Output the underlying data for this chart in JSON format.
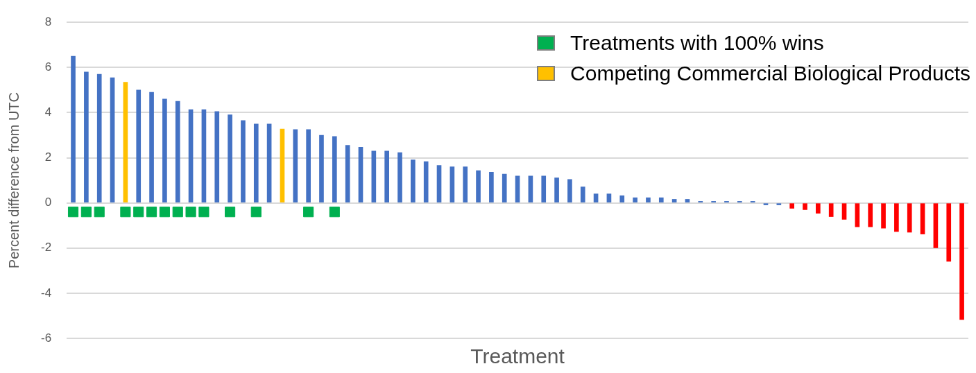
{
  "chart_data": {
    "type": "bar",
    "xlabel": "Treatment",
    "ylabel": "Percent difference from UTC",
    "categories": [
      null,
      null,
      null,
      null,
      null,
      null,
      null,
      null,
      null,
      null,
      null,
      null,
      null,
      null,
      null,
      null,
      null,
      null,
      null,
      null,
      null,
      null,
      null,
      null,
      null,
      null,
      null,
      null,
      null,
      null,
      null,
      null,
      null,
      null,
      null,
      null,
      null,
      null,
      null,
      null,
      null,
      null,
      null,
      null,
      null,
      null,
      null,
      null,
      null,
      null,
      null,
      null,
      null,
      null,
      null,
      null,
      null,
      null,
      null,
      null,
      null,
      null,
      null,
      null,
      null,
      null,
      null,
      null,
      null
    ],
    "series": [
      {
        "colors": [
          "#4472c4",
          "#4472c4",
          "#4472c4",
          "#4472c4",
          "#4472c4",
          "#4472c4",
          "#4472c4",
          "#4472c4",
          "#4472c4",
          "#4472c4",
          "#4472c4",
          "#4472c4",
          "#4472c4",
          "#4472c4",
          "#4472c4",
          "#4472c4",
          "#4472c4",
          "#4472c4",
          "#4472c4",
          "#4472c4",
          "#4472c4",
          "#4472c4",
          "#4472c4",
          "#4472c4",
          "#4472c4",
          "#4472c4",
          "#4472c4",
          "#4472c4",
          "#4472c4",
          "#4472c4",
          "#4472c4",
          "#4472c4",
          "#4472c4",
          "#4472c4",
          "#4472c4",
          "#4472c4",
          "#4472c4",
          "#4472c4",
          "#4472c4",
          "#4472c4",
          "#4472c4",
          "#4472c4",
          "#4472c4",
          "#4472c4",
          "#4472c4",
          "#4472c4",
          "#4472c4",
          "#4472c4",
          "#4472c4",
          "#4472c4",
          "#4472c4",
          "#4472c4",
          "#4472c4",
          "#4472c4",
          "#4472c4",
          "#ff0000",
          "#ff0000",
          "#ff0000",
          "#ff0000",
          "#ff0000",
          "#ff0000",
          "#ff0000",
          "#ff0000",
          "#ff0000",
          "#ff0000",
          "#ff0000",
          "#ff0000",
          "#ff0000",
          "#ff0000"
        ],
        "values": [
          6.5,
          5.8,
          5.7,
          5.55,
          null,
          5.0,
          4.9,
          4.6,
          4.5,
          4.13,
          4.13,
          4.05,
          3.9,
          3.65,
          3.5,
          3.5,
          null,
          3.25,
          3.25,
          3.0,
          2.94,
          2.55,
          2.47,
          2.3,
          2.3,
          2.23,
          1.91,
          1.83,
          1.66,
          1.6,
          1.6,
          1.43,
          1.36,
          1.28,
          1.19,
          1.19,
          1.19,
          1.11,
          1.04,
          0.71,
          0.4,
          0.4,
          0.32,
          0.23,
          0.23,
          0.23,
          0.16,
          0.16,
          0.07,
          0.07,
          0.07,
          0.07,
          0.07,
          -0.09,
          -0.09,
          -0.24,
          -0.3,
          -0.46,
          -0.61,
          -0.73,
          -1.06,
          -1.06,
          -1.12,
          -1.27,
          -1.3,
          -1.38,
          -1.99,
          -2.59,
          -5.17
        ]
      },
      {
        "name": "Treatments with 100% wins",
        "type": "scatter",
        "marker": "square",
        "color": "#00b050",
        "values": [
          -0.4,
          -0.4,
          -0.4,
          null,
          -0.4,
          -0.4,
          -0.4,
          -0.4,
          -0.4,
          -0.4,
          -0.4,
          null,
          -0.4,
          null,
          -0.4,
          null,
          null,
          null,
          -0.4,
          null,
          -0.4,
          null,
          null,
          null,
          null,
          null,
          null,
          null,
          null,
          null,
          null,
          null,
          null,
          null,
          null,
          null,
          null,
          null,
          null,
          null,
          null,
          null,
          null,
          null,
          null,
          null,
          null,
          null,
          null,
          null,
          null,
          null,
          null,
          null,
          null,
          null,
          null,
          null,
          null,
          null,
          null,
          null,
          null,
          null,
          null,
          null,
          null,
          null,
          null
        ]
      },
      {
        "name": "Competing Commercial Biological Products",
        "color": "#ffc000",
        "values": [
          null,
          null,
          null,
          null,
          5.35,
          null,
          null,
          null,
          null,
          null,
          null,
          null,
          null,
          null,
          null,
          null,
          3.27,
          null,
          null,
          null,
          null,
          null,
          null,
          null,
          null,
          null,
          null,
          null,
          null,
          null,
          null,
          null,
          null,
          null,
          null,
          null,
          null,
          null,
          null,
          null,
          null,
          null,
          null,
          null,
          null,
          null,
          null,
          null,
          null,
          null,
          null,
          null,
          null,
          null,
          null,
          null,
          null,
          null,
          null,
          null,
          null,
          null,
          null,
          null,
          null,
          null,
          null,
          null,
          null
        ]
      }
    ],
    "ylim": [
      -6,
      8
    ],
    "yticks": [
      -6,
      -4,
      -2,
      0,
      2,
      4,
      6,
      8
    ],
    "grid": "y",
    "legend": "top right",
    "tick_labels": "y"
  }
}
